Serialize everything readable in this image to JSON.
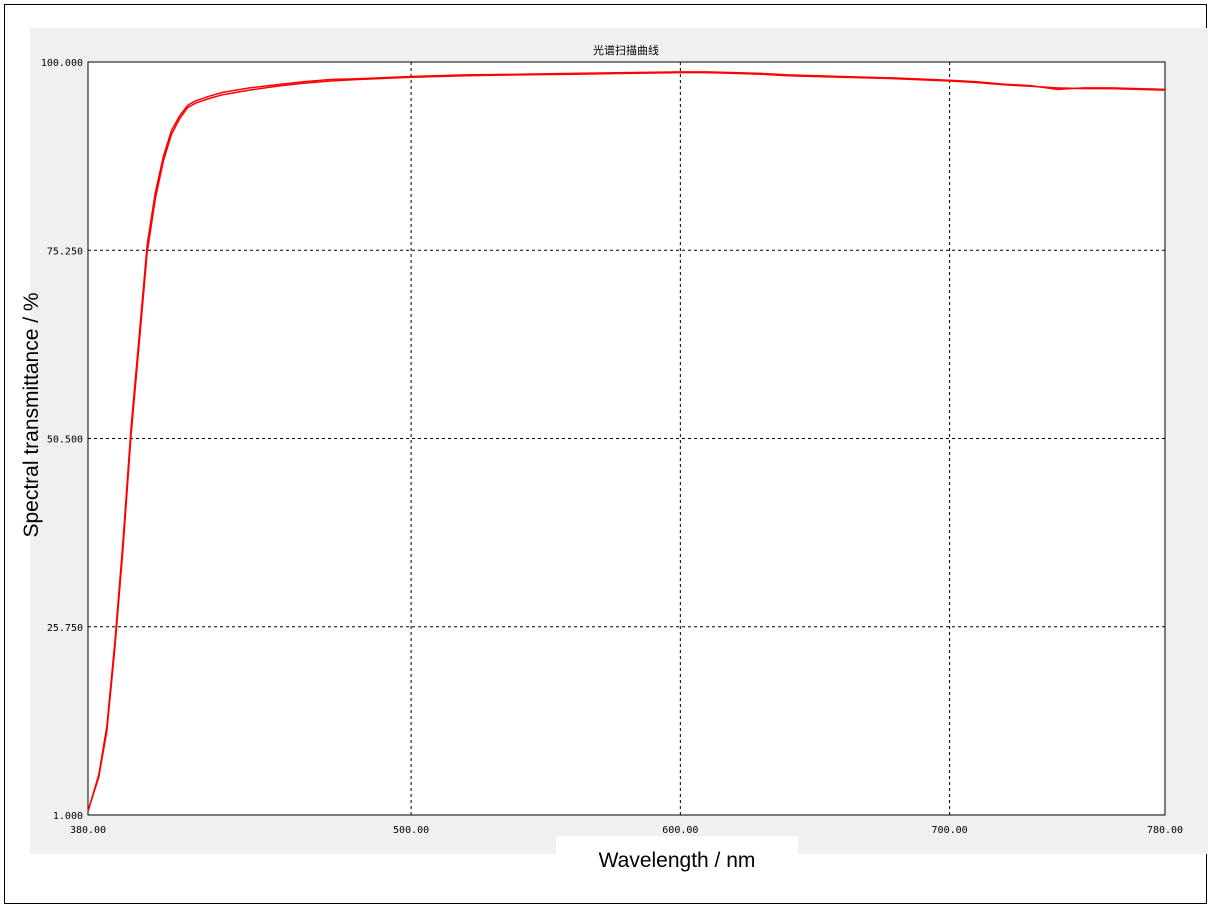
{
  "chart_data": {
    "type": "line",
    "title": "光谱扫描曲线",
    "xlabel": "Wavelength / nm",
    "ylabel": "Spectral transmittance / %",
    "xlim": [
      380,
      780
    ],
    "ylim": [
      1,
      100
    ],
    "x_ticks": [
      "380.00",
      "500.00",
      "600.00",
      "700.00",
      "780.00"
    ],
    "y_ticks": [
      "1.000",
      "25.750",
      "50.500",
      "75.250",
      "100.000"
    ],
    "grid": true,
    "series": [
      {
        "color": "#ff0000",
        "x": [
          380,
          384,
          387,
          390,
          393,
          396,
          399,
          402,
          405,
          408,
          411,
          414,
          417,
          420,
          425,
          430,
          440,
          450,
          460,
          470,
          480,
          500,
          520,
          540,
          560,
          580,
          600,
          610,
          620,
          630,
          640,
          660,
          680,
          700,
          710,
          720,
          730,
          740,
          750,
          760,
          770,
          780
        ],
        "y": [
          1.5,
          6,
          12,
          23,
          36,
          51,
          63,
          75,
          82,
          87,
          90.5,
          92.5,
          94,
          94.6,
          95.2,
          95.7,
          96.3,
          96.8,
          97.2,
          97.5,
          97.7,
          98,
          98.2,
          98.3,
          98.4,
          98.5,
          98.6,
          98.6,
          98.5,
          98.4,
          98.2,
          98,
          97.8,
          97.5,
          97.3,
          97,
          96.8,
          96.6,
          96.5,
          96.5,
          96.4,
          96.3
        ]
      },
      {
        "color": "#ff0000",
        "x": [
          380,
          384,
          387,
          390,
          393,
          396,
          399,
          402,
          405,
          408,
          411,
          414,
          417,
          420,
          425,
          430,
          440,
          450,
          460,
          470,
          480,
          500,
          520,
          540,
          560,
          580,
          600,
          610,
          620,
          630,
          640,
          660,
          680,
          700,
          710,
          720,
          730,
          740,
          750,
          760,
          770,
          780
        ],
        "y": [
          1.5,
          6.3,
          12.6,
          23.8,
          37,
          52,
          64,
          76,
          82.8,
          87.6,
          91,
          92.9,
          94.3,
          94.9,
          95.5,
          96,
          96.6,
          97,
          97.4,
          97.7,
          97.8,
          98.1,
          98.3,
          98.4,
          98.5,
          98.6,
          98.7,
          98.7,
          98.6,
          98.5,
          98.3,
          98.1,
          97.9,
          97.6,
          97.4,
          97.1,
          96.9,
          96.4,
          96.6,
          96.6,
          96.5,
          96.4
        ]
      }
    ]
  }
}
